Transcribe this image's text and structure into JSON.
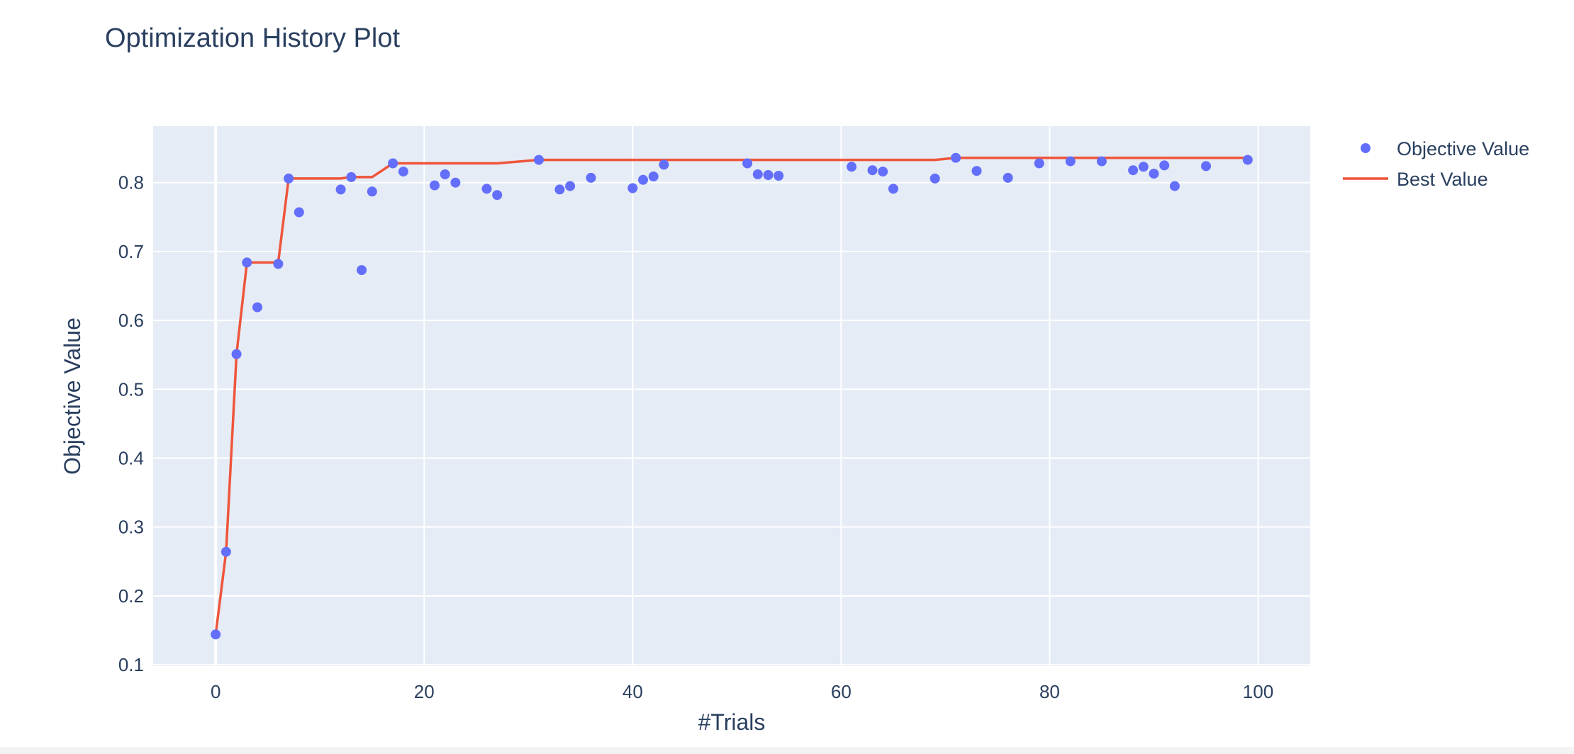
{
  "chart_data": {
    "type": "scatter",
    "title": "Optimization History Plot",
    "xlabel": "#Trials",
    "ylabel": "Objective Value",
    "xlim": [
      -6,
      105
    ],
    "ylim": [
      0.098,
      0.882
    ],
    "x_ticks": [
      0,
      20,
      40,
      60,
      80,
      100
    ],
    "y_ticks": [
      0.1,
      0.2,
      0.3,
      0.4,
      0.5,
      0.6,
      0.7,
      0.8
    ],
    "grid": true,
    "legend_position": "top-right",
    "series": [
      {
        "name": "Objective Value",
        "type": "scatter",
        "color": "#636efa",
        "x": [
          0,
          1,
          2,
          3,
          4,
          6,
          7,
          8,
          12,
          13,
          14,
          15,
          17,
          18,
          21,
          22,
          23,
          26,
          27,
          31,
          33,
          34,
          36,
          40,
          41,
          42,
          43,
          51,
          52,
          53,
          54,
          61,
          63,
          64,
          65,
          69,
          71,
          73,
          76,
          79,
          82,
          85,
          88,
          89,
          90,
          91,
          92,
          95,
          99
        ],
        "y": [
          0.144,
          0.264,
          0.551,
          0.684,
          0.619,
          0.682,
          0.806,
          0.757,
          0.79,
          0.808,
          0.673,
          0.787,
          0.828,
          0.816,
          0.796,
          0.812,
          0.8,
          0.791,
          0.782,
          0.833,
          0.79,
          0.795,
          0.807,
          0.792,
          0.804,
          0.809,
          0.826,
          0.828,
          0.812,
          0.811,
          0.81,
          0.823,
          0.818,
          0.816,
          0.791,
          0.806,
          0.836,
          0.817,
          0.807,
          0.828,
          0.831,
          0.831,
          0.818,
          0.823,
          0.813,
          0.825,
          0.795,
          0.824,
          0.833
        ]
      },
      {
        "name": "Best Value",
        "type": "line",
        "color": "#ef553b",
        "x": [
          0,
          1,
          2,
          3,
          4,
          6,
          7,
          8,
          12,
          13,
          14,
          15,
          17,
          18,
          21,
          22,
          23,
          26,
          27,
          31,
          33,
          34,
          36,
          40,
          41,
          42,
          43,
          51,
          52,
          53,
          54,
          61,
          63,
          64,
          65,
          69,
          71,
          73,
          76,
          79,
          82,
          85,
          88,
          89,
          90,
          91,
          92,
          95,
          99
        ],
        "y": [
          0.144,
          0.264,
          0.551,
          0.684,
          0.684,
          0.684,
          0.806,
          0.806,
          0.806,
          0.808,
          0.808,
          0.808,
          0.828,
          0.828,
          0.828,
          0.828,
          0.828,
          0.828,
          0.828,
          0.833,
          0.833,
          0.833,
          0.833,
          0.833,
          0.833,
          0.833,
          0.833,
          0.833,
          0.833,
          0.833,
          0.833,
          0.833,
          0.833,
          0.833,
          0.833,
          0.833,
          0.836,
          0.836,
          0.836,
          0.836,
          0.836,
          0.836,
          0.836,
          0.836,
          0.836,
          0.836,
          0.836,
          0.836,
          0.836
        ]
      }
    ]
  }
}
